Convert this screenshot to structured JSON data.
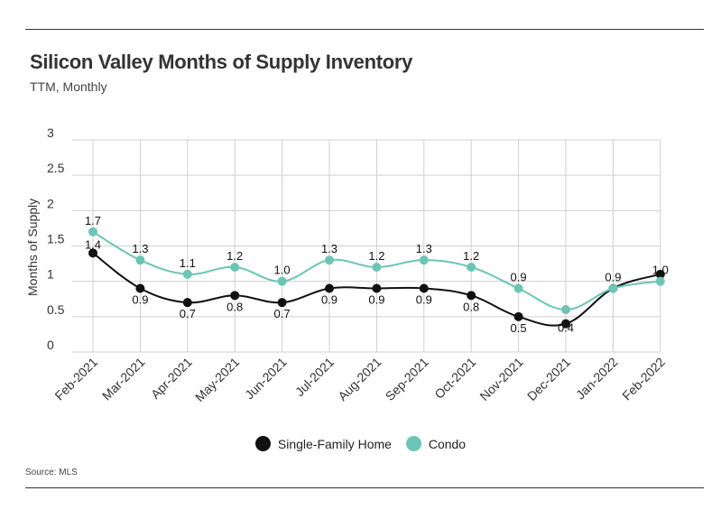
{
  "header": {
    "title": "Silicon Valley Months of Supply Inventory",
    "subtitle": "TTM, Monthly"
  },
  "footer": {
    "source": "Source:  MLS"
  },
  "colors": {
    "single_family": "#111111",
    "condo": "#6cc5b4",
    "grid": "#d0d0d0"
  },
  "chart_data": {
    "type": "line",
    "title": "Silicon Valley Months of Supply Inventory",
    "subtitle": "TTM, Monthly",
    "xlabel": "",
    "ylabel": "Months of Supply",
    "ylim": [
      0,
      3
    ],
    "yticks": [
      "0",
      "0.5",
      "1",
      "1.5",
      "2",
      "2.5",
      "3"
    ],
    "categories": [
      "Feb-2021",
      "Mar-2021",
      "Apr-2021",
      "May-2021",
      "Jun-2021",
      "Jul-2021",
      "Aug-2021",
      "Sep-2021",
      "Oct-2021",
      "Nov-2021",
      "Dec-2021",
      "Jan-2022",
      "Feb-2022"
    ],
    "series": [
      {
        "name": "Single-Family Home",
        "color": "#111111",
        "values": [
          1.4,
          0.9,
          0.7,
          0.8,
          0.7,
          0.9,
          0.9,
          0.9,
          0.8,
          0.5,
          0.4,
          0.9,
          1.1
        ],
        "labels": [
          "1.4",
          "0.9",
          "0.7",
          "0.8",
          "0.7",
          "0.9",
          "0.9",
          "0.9",
          "0.8",
          "0.5",
          "0.4",
          "",
          ""
        ]
      },
      {
        "name": "Condo",
        "color": "#6cc5b4",
        "values": [
          1.7,
          1.3,
          1.1,
          1.2,
          1.0,
          1.3,
          1.2,
          1.3,
          1.2,
          0.9,
          0.6,
          0.9,
          1.0
        ],
        "labels": [
          "1.7",
          "1.3",
          "1.1",
          "1.2",
          "1.0",
          "1.3",
          "1.2",
          "1.3",
          "1.2",
          "0.9",
          "",
          "0.9",
          "1.0"
        ]
      }
    ],
    "legend": [
      "Single-Family Home",
      "Condo"
    ],
    "source": "Source:  MLS",
    "grid": true,
    "legend_position": "bottom"
  }
}
